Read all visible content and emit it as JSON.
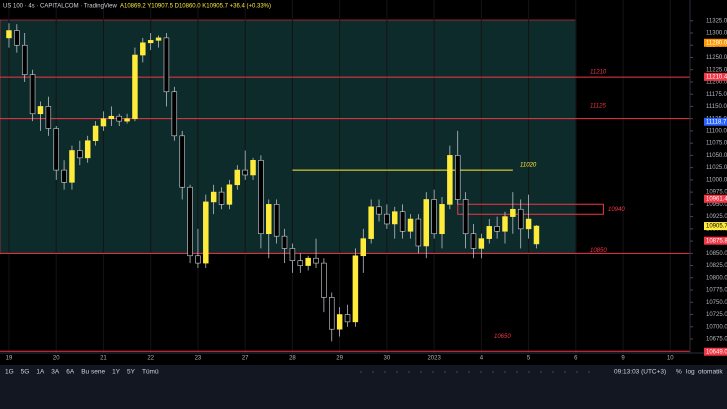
{
  "header": {
    "symbol": "US 100 · 4s · CAPITALCOM · TradingView",
    "ohlc": "A10869.2 Y10907.5 D10860.0 K10905.7 +36.4 (+0.33%)"
  },
  "toolbar": {
    "ranges": [
      "1G",
      "5G",
      "1A",
      "3A",
      "6A",
      "Bu sene",
      "1Y",
      "5Y",
      "Tümü"
    ],
    "time": "09:13:03 (UTC+3)",
    "percent": "%",
    "log": "log",
    "auto": "otomatik"
  },
  "chart_data": {
    "type": "candlestick",
    "open": [
      11290,
      11305,
      11275,
      11215,
      11135,
      11150,
      11105,
      11020,
      10995,
      11060,
      11045,
      11080,
      11110,
      11125,
      11130,
      11120,
      11125,
      11255,
      11280,
      11285,
      11290,
      11180,
      11090,
      10985,
      10845,
      10830,
      10955,
      10975,
      10950,
      10990,
      11020,
      11010,
      11040,
      10890,
      10950,
      10885,
      10860,
      10835,
      10825,
      10840,
      10830,
      10760,
      10695,
      10725,
      10710,
      10845,
      10880,
      10945,
      10930,
      10910,
      10935,
      10895,
      10920,
      10865,
      10960,
      10890,
      10950,
      11050,
      10960,
      10890,
      10860,
      10880,
      10905,
      10895,
      10925,
      10940,
      10900,
      10869.2
    ],
    "high": [
      11320,
      11318,
      11300,
      11225,
      11160,
      11170,
      11110,
      11040,
      11070,
      11080,
      11090,
      11120,
      11140,
      11150,
      11135,
      11135,
      11270,
      11290,
      11300,
      11295,
      11300,
      11190,
      11100,
      10990,
      10900,
      10970,
      10990,
      10985,
      11000,
      11030,
      11060,
      11045,
      11050,
      10960,
      10960,
      10900,
      10870,
      10850,
      10845,
      10880,
      10840,
      10770,
      10740,
      10745,
      10860,
      10900,
      10960,
      10960,
      10950,
      10945,
      10950,
      10930,
      10930,
      10975,
      10980,
      10965,
      11070,
      11100,
      10975,
      10910,
      10890,
      10920,
      10925,
      10935,
      10975,
      10960,
      10970,
      10907.5
    ],
    "low": [
      11270,
      11260,
      11200,
      11120,
      11100,
      11090,
      11000,
      10980,
      10980,
      11030,
      11035,
      11070,
      11100,
      11110,
      11110,
      11115,
      11120,
      11240,
      11265,
      11270,
      11150,
      11080,
      10960,
      10830,
      10820,
      10820,
      10930,
      10940,
      10940,
      10980,
      11000,
      11000,
      10860,
      10840,
      10870,
      10830,
      10810,
      10810,
      10815,
      10820,
      10730,
      10670,
      10680,
      10700,
      10700,
      10810,
      10870,
      10915,
      10900,
      10880,
      10880,
      10880,
      10850,
      10840,
      10880,
      10860,
      10940,
      10950,
      10860,
      10840,
      10840,
      10870,
      10880,
      10870,
      10890,
      10860,
      10880,
      10860.0
    ],
    "close": [
      11305,
      11275,
      11215,
      11135,
      11150,
      11105,
      11020,
      10995,
      11060,
      11045,
      11080,
      11110,
      11125,
      11130,
      11120,
      11125,
      11255,
      11280,
      11285,
      11290,
      11180,
      11090,
      10985,
      10845,
      10830,
      10955,
      10975,
      10950,
      10990,
      11020,
      11010,
      11040,
      10890,
      10950,
      10885,
      10860,
      10835,
      10825,
      10840,
      10830,
      10760,
      10695,
      10725,
      10710,
      10845,
      10880,
      10945,
      10930,
      10910,
      10935,
      10895,
      10920,
      10865,
      10960,
      10890,
      10950,
      11050,
      10960,
      10890,
      10860,
      10880,
      10905,
      10895,
      10925,
      10940,
      10900,
      10920,
      10905.7
    ],
    "up_color": "#ffeb3b",
    "down_color": "#000000",
    "wick_color": "#d1d4dc",
    "xlim": [
      -1.14,
      86.5
    ],
    "xticks": [
      {
        "value": 0,
        "label": "19"
      },
      {
        "value": 6,
        "label": "20"
      },
      {
        "value": 12,
        "label": "21"
      },
      {
        "value": 18,
        "label": "22"
      },
      {
        "value": 24,
        "label": "23"
      },
      {
        "value": 30,
        "label": "27"
      },
      {
        "value": 36,
        "label": "28"
      },
      {
        "value": 42,
        "label": "29"
      },
      {
        "value": 48,
        "label": "30"
      },
      {
        "value": 54,
        "label": "2023"
      },
      {
        "value": 60,
        "label": "4"
      },
      {
        "value": 66,
        "label": "5"
      },
      {
        "value": 72,
        "label": "6"
      },
      {
        "value": 78,
        "label": "9"
      },
      {
        "value": 84,
        "label": "10"
      }
    ],
    "ylim": [
      10646.4,
      11367.4
    ],
    "yticks": [
      {
        "value": 11325,
        "label": "11325.0"
      },
      {
        "value": 11300,
        "label": "11300.0"
      },
      {
        "value": 11275,
        "label": "11275.0"
      },
      {
        "value": 11250,
        "label": "11250.0"
      },
      {
        "value": 11225,
        "label": "11225.0"
      },
      {
        "value": 11200,
        "label": "11200.0"
      },
      {
        "value": 11175,
        "label": "11175.0"
      },
      {
        "value": 11150,
        "label": "11150.0"
      },
      {
        "value": 11125,
        "label": "11125.0"
      },
      {
        "value": 11100,
        "label": "11100.0"
      },
      {
        "value": 11075,
        "label": "11075.0"
      },
      {
        "value": 11050,
        "label": "11050.0"
      },
      {
        "value": 11025,
        "label": "11025.0"
      },
      {
        "value": 11000,
        "label": "11000.0"
      },
      {
        "value": 10975,
        "label": "10975.0"
      },
      {
        "value": 10950,
        "label": "10950.0"
      },
      {
        "value": 10925,
        "label": "10925.0"
      },
      {
        "value": 10900,
        "label": "10900.0"
      },
      {
        "value": 10875,
        "label": "10875.0"
      },
      {
        "value": 10850,
        "label": "10850.0"
      },
      {
        "value": 10825,
        "label": "10825.0"
      },
      {
        "value": 10800,
        "label": "10800.0"
      },
      {
        "value": 10775,
        "label": "10775.0"
      },
      {
        "value": 10750,
        "label": "10750.0"
      },
      {
        "value": 10725,
        "label": "10725.0"
      },
      {
        "value": 10700,
        "label": "10700.0"
      },
      {
        "value": 10675,
        "label": "10675.0"
      }
    ],
    "price_labels": [
      {
        "value": 11280,
        "label": "11280.0",
        "color": "#ff9800"
      },
      {
        "value": 11210.4,
        "label": "11210.4",
        "color": "#f23645"
      },
      {
        "value": 11118.7,
        "label": "11118.7",
        "color": "#2962ff"
      },
      {
        "value": 10961.4,
        "label": "10961.4",
        "color": "#f23645"
      },
      {
        "value": 10905.7,
        "label": "10905.7",
        "color": "#ffeb3b"
      },
      {
        "value": 10875.8,
        "label": "10875.8",
        "color": "#f23645"
      },
      {
        "value": 10649,
        "label": "10649.0",
        "color": "#f23645"
      }
    ],
    "levels": [
      11210,
      11125,
      11020,
      10940,
      10850,
      10650
    ],
    "level_colors": [
      "#f23645",
      "#f23645",
      "#ffeb3b",
      "#f23645",
      "#f23645",
      "#f23645"
    ]
  }
}
